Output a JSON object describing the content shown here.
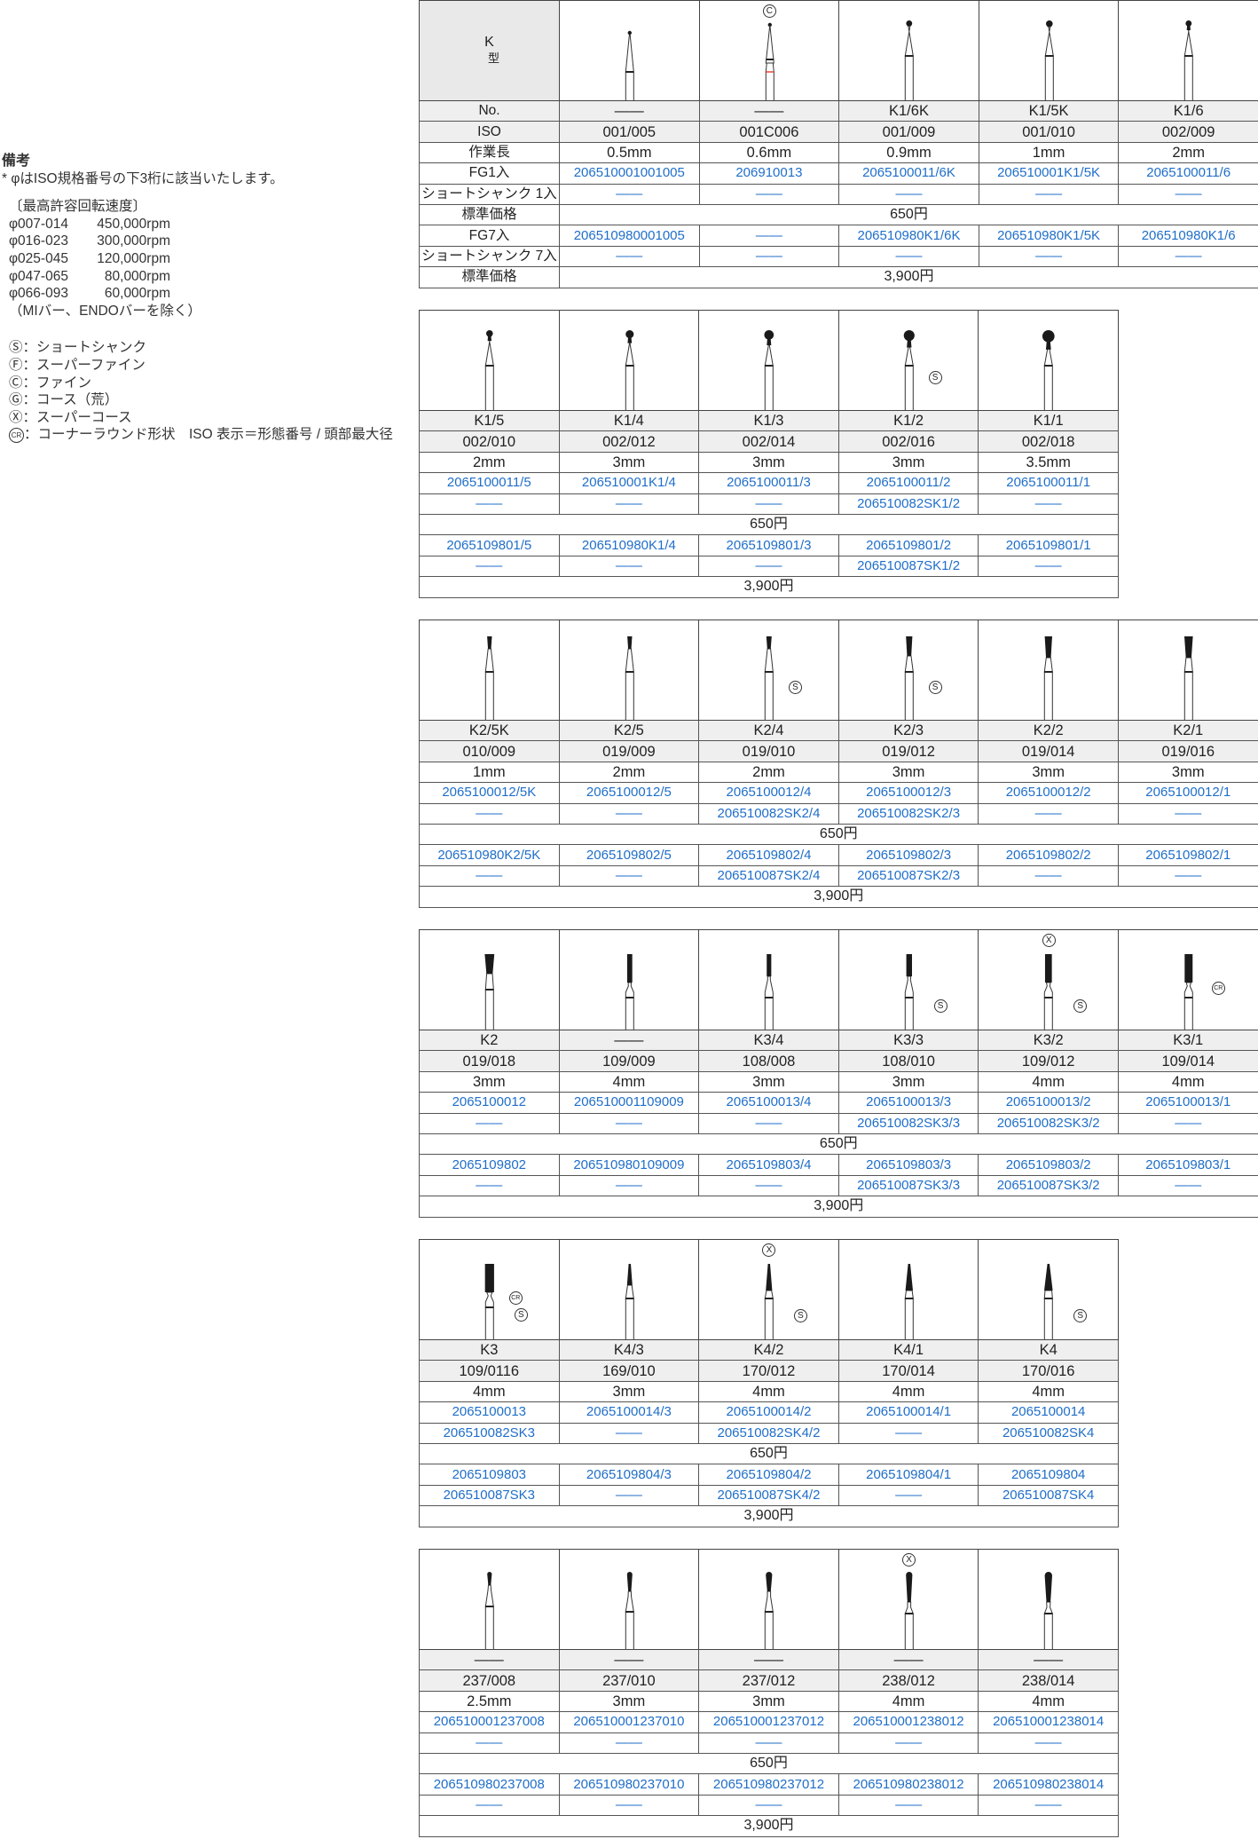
{
  "notes": {
    "title": "備考",
    "footnote": "* φはISO規格番号の下3桁に該当いたします。",
    "speed_heading": "〔最高許容回転速度〕",
    "speeds": [
      {
        "range": "φ007-014",
        "rpm": "450,000rpm"
      },
      {
        "range": "φ016-023",
        "rpm": "300,000rpm"
      },
      {
        "range": "φ025-045",
        "rpm": "120,000rpm"
      },
      {
        "range": "φ047-065",
        "rpm": "80,000rpm"
      },
      {
        "range": "φ066-093",
        "rpm": "60,000rpm"
      }
    ],
    "speed_exclusion": "（MIバー、ENDOバーを除く）",
    "legend": [
      {
        "symbol": "Ⓢ",
        "text": "：ショートシャンク"
      },
      {
        "symbol": "Ⓕ",
        "text": "：スーパーファイン"
      },
      {
        "symbol": "Ⓒ",
        "text": "：ファイン"
      },
      {
        "symbol": "Ⓖ",
        "text": "：コース（荒）"
      },
      {
        "symbol": "Ⓧ",
        "text": "：スーパーコース"
      },
      {
        "symbol": "CR",
        "text": "：コーナーラウンド形状　ISO 表示＝形態番号 / 頭部最大径"
      }
    ]
  },
  "row_labels": {
    "type_title": "K",
    "type_sub": "型",
    "no": "No.",
    "iso": "ISO",
    "length": "作業長",
    "fg1": "FG1入",
    "ss1": "ショートシャンク 1入",
    "price1": "標準価格",
    "fg7": "FG7入",
    "ss7": "ショートシャンク 7入",
    "price7": "標準価格"
  },
  "colors": {
    "code_blue": "#1f6ec9",
    "head": "#1a1a1a",
    "fine_ring": "#e8483c",
    "shaded_row": "#efefef"
  },
  "tables": [
    {
      "price1": "650円",
      "price7": "3,900円",
      "columns": [
        {
          "no": "——",
          "iso": "001/005",
          "length": "0.5mm",
          "fg1": "206510001001005",
          "ss1": "——",
          "fg7": "206510980001005",
          "ss7": "——",
          "shape": "needle",
          "top_badge": "",
          "side_badges": []
        },
        {
          "no": "——",
          "iso": "001C006",
          "length": "0.6mm",
          "fg1": "206910013",
          "ss1": "——",
          "fg7": "——",
          "ss7": "——",
          "shape": "needle",
          "ring": "fine",
          "top_badge": "C",
          "side_badges": []
        },
        {
          "no": "K1/6K",
          "iso": "001/009",
          "length": "0.9mm",
          "fg1": "2065100011/6K",
          "ss1": "——",
          "fg7": "206510980K1/6K",
          "ss7": "——",
          "shape": "round-needle",
          "top_badge": "",
          "side_badges": []
        },
        {
          "no": "K1/5K",
          "iso": "001/010",
          "length": "1mm",
          "fg1": "206510001K1/5K",
          "ss1": "——",
          "fg7": "206510980K1/5K",
          "ss7": "——",
          "shape": "round-needle",
          "top_badge": "",
          "side_badges": []
        },
        {
          "no": "K1/6",
          "iso": "002/009",
          "length": "2mm",
          "fg1": "2065100011/6",
          "ss1": "——",
          "fg7": "206510980K1/6",
          "ss7": "——",
          "shape": "round",
          "top_badge": "",
          "side_badges": []
        }
      ]
    },
    {
      "price1": "650円",
      "price7": "3,900円",
      "columns": [
        {
          "no": "K1/5",
          "iso": "002/010",
          "length": "2mm",
          "fg1": "2065100011/5",
          "ss1": "——",
          "fg7": "2065109801/5",
          "ss7": "——",
          "shape": "round",
          "top_badge": "",
          "side_badges": []
        },
        {
          "no": "K1/4",
          "iso": "002/012",
          "length": "3mm",
          "fg1": "206510001K1/4",
          "ss1": "——",
          "fg7": "206510980K1/4",
          "ss7": "——",
          "shape": "round",
          "top_badge": "",
          "side_badges": []
        },
        {
          "no": "K1/3",
          "iso": "002/014",
          "length": "3mm",
          "fg1": "2065100011/3",
          "ss1": "——",
          "fg7": "2065109801/3",
          "ss7": "——",
          "shape": "round",
          "top_badge": "",
          "side_badges": []
        },
        {
          "no": "K1/2",
          "iso": "002/016",
          "length": "3mm",
          "fg1": "2065100011/2",
          "ss1": "206510082SK1/2",
          "fg7": "2065109801/2",
          "ss7": "206510087SK1/2",
          "shape": "round",
          "top_badge": "",
          "side_badges": [
            "S"
          ]
        },
        {
          "no": "K1/1",
          "iso": "002/018",
          "length": "3.5mm",
          "fg1": "2065100011/1",
          "ss1": "——",
          "fg7": "2065109801/1",
          "ss7": "——",
          "shape": "round",
          "top_badge": "",
          "side_badges": []
        }
      ]
    },
    {
      "price1": "650円",
      "price7": "3,900円",
      "columns": [
        {
          "no": "K2/5K",
          "iso": "010/009",
          "length": "1mm",
          "fg1": "2065100012/5K",
          "ss1": "——",
          "fg7": "206510980K2/5K",
          "ss7": "——",
          "shape": "inverted",
          "top_badge": "",
          "side_badges": []
        },
        {
          "no": "K2/5",
          "iso": "019/009",
          "length": "2mm",
          "fg1": "2065100012/5",
          "ss1": "——",
          "fg7": "2065109802/5",
          "ss7": "——",
          "shape": "inverted",
          "top_badge": "",
          "side_badges": []
        },
        {
          "no": "K2/4",
          "iso": "019/010",
          "length": "2mm",
          "fg1": "2065100012/4",
          "ss1": "206510082SK2/4",
          "fg7": "2065109802/4",
          "ss7": "206510087SK2/4",
          "shape": "inverted",
          "top_badge": "",
          "side_badges": [
            "S"
          ]
        },
        {
          "no": "K2/3",
          "iso": "019/012",
          "length": "3mm",
          "fg1": "2065100012/3",
          "ss1": "206510082SK2/3",
          "fg7": "2065109802/3",
          "ss7": "206510087SK2/3",
          "shape": "inverted",
          "top_badge": "",
          "side_badges": [
            "S"
          ]
        },
        {
          "no": "K2/2",
          "iso": "019/014",
          "length": "3mm",
          "fg1": "2065100012/2",
          "ss1": "——",
          "fg7": "2065109802/2",
          "ss7": "——",
          "shape": "inverted",
          "top_badge": "",
          "side_badges": []
        },
        {
          "no": "K2/1",
          "iso": "019/016",
          "length": "3mm",
          "fg1": "2065100012/1",
          "ss1": "——",
          "fg7": "2065109802/1",
          "ss7": "——",
          "shape": "inverted",
          "top_badge": "",
          "side_badges": []
        }
      ]
    },
    {
      "price1": "650円",
      "price7": "3,900円",
      "columns": [
        {
          "no": "K2",
          "iso": "019/018",
          "length": "3mm",
          "fg1": "2065100012",
          "ss1": "——",
          "fg7": "2065109802",
          "ss7": "——",
          "shape": "inverted-long",
          "top_badge": "",
          "side_badges": []
        },
        {
          "no": "——",
          "iso": "109/009",
          "length": "4mm",
          "fg1": "206510001109009",
          "ss1": "——",
          "fg7": "206510980109009",
          "ss7": "——",
          "shape": "cylinder",
          "top_badge": "",
          "side_badges": []
        },
        {
          "no": "K3/4",
          "iso": "108/008",
          "length": "3mm",
          "fg1": "2065100013/4",
          "ss1": "——",
          "fg7": "2065109803/4",
          "ss7": "——",
          "shape": "cylinder",
          "top_badge": "",
          "side_badges": []
        },
        {
          "no": "K3/3",
          "iso": "108/010",
          "length": "3mm",
          "fg1": "2065100013/3",
          "ss1": "206510082SK3/3",
          "fg7": "2065109803/3",
          "ss7": "206510087SK3/3",
          "shape": "cylinder",
          "top_badge": "",
          "side_badges": [
            "S"
          ]
        },
        {
          "no": "K3/2",
          "iso": "109/012",
          "length": "4mm",
          "fg1": "2065100013/2",
          "ss1": "206510082SK3/2",
          "fg7": "2065109803/2",
          "ss7": "206510087SK3/2",
          "shape": "cylinder",
          "top_badge": "X",
          "side_badges": [
            "S"
          ]
        },
        {
          "no": "K3/1",
          "iso": "109/014",
          "length": "4mm",
          "fg1": "2065100013/1",
          "ss1": "——",
          "fg7": "2065109803/1",
          "ss7": "——",
          "shape": "cylinder",
          "top_badge": "",
          "side_badges": [
            "CR"
          ]
        }
      ]
    },
    {
      "price1": "650円",
      "price7": "3,900円",
      "columns": [
        {
          "no": "K3",
          "iso": "109/0116",
          "length": "4mm",
          "fg1": "2065100013",
          "ss1": "206510082SK3",
          "fg7": "2065109803",
          "ss7": "206510087SK3",
          "shape": "cylinder",
          "top_badge": "",
          "side_badges": [
            "CR",
            "S"
          ]
        },
        {
          "no": "K4/3",
          "iso": "169/010",
          "length": "3mm",
          "fg1": "2065100014/3",
          "ss1": "——",
          "fg7": "2065109804/3",
          "ss7": "——",
          "shape": "taper",
          "top_badge": "",
          "side_badges": []
        },
        {
          "no": "K4/2",
          "iso": "170/012",
          "length": "4mm",
          "fg1": "2065100014/2",
          "ss1": "206510082SK4/2",
          "fg7": "2065109804/2",
          "ss7": "206510087SK4/2",
          "shape": "taper",
          "top_badge": "X",
          "side_badges": [
            "S"
          ]
        },
        {
          "no": "K4/1",
          "iso": "170/014",
          "length": "4mm",
          "fg1": "2065100014/1",
          "ss1": "——",
          "fg7": "2065109804/1",
          "ss7": "——",
          "shape": "taper",
          "top_badge": "",
          "side_badges": []
        },
        {
          "no": "K4",
          "iso": "170/016",
          "length": "4mm",
          "fg1": "2065100014",
          "ss1": "206510082SK4",
          "fg7": "2065109804",
          "ss7": "206510087SK4",
          "shape": "taper",
          "top_badge": "",
          "side_badges": [
            "S"
          ]
        }
      ]
    },
    {
      "price1": "650円",
      "price7": "3,900円",
      "columns": [
        {
          "no": "——",
          "iso": "237/008",
          "length": "2.5mm",
          "fg1": "206510001237008",
          "ss1": "——",
          "fg7": "206510980237008",
          "ss7": "——",
          "shape": "pear",
          "top_badge": "",
          "side_badges": []
        },
        {
          "no": "——",
          "iso": "237/010",
          "length": "3mm",
          "fg1": "206510001237010",
          "ss1": "——",
          "fg7": "206510980237010",
          "ss7": "——",
          "shape": "pear",
          "top_badge": "",
          "side_badges": []
        },
        {
          "no": "——",
          "iso": "237/012",
          "length": "3mm",
          "fg1": "206510001237012",
          "ss1": "——",
          "fg7": "206510980237012",
          "ss7": "——",
          "shape": "pear",
          "top_badge": "",
          "side_badges": []
        },
        {
          "no": "——",
          "iso": "238/012",
          "length": "4mm",
          "fg1": "206510001238012",
          "ss1": "——",
          "fg7": "206510980238012",
          "ss7": "——",
          "shape": "pear",
          "top_badge": "X",
          "side_badges": []
        },
        {
          "no": "——",
          "iso": "238/014",
          "length": "4mm",
          "fg1": "206510001238014",
          "ss1": "——",
          "fg7": "206510980238014",
          "ss7": "——",
          "shape": "pear",
          "top_badge": "",
          "side_badges": []
        }
      ]
    }
  ]
}
